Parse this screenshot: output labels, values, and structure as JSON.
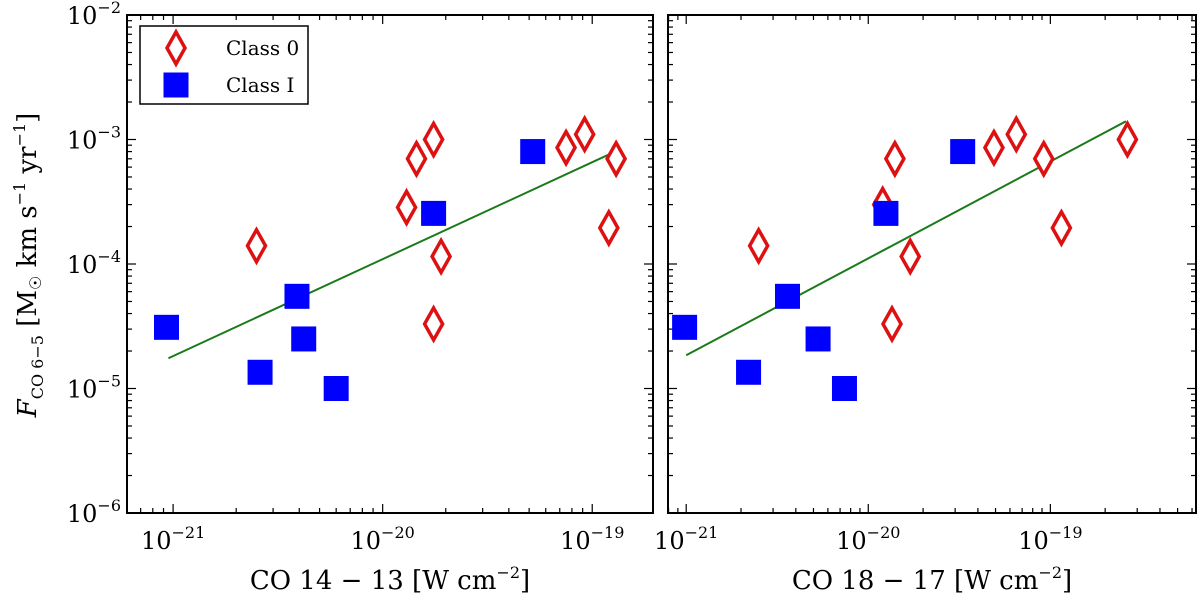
{
  "chart_data": {
    "type": "scatter",
    "y_axis": {
      "label": "F_CO 6−5 [M☉ km s⁻¹ yr⁻¹]",
      "label_main": "F",
      "label_sub": "CO 6−5",
      "label_units_prefix": " [M",
      "label_units_sun": "☉",
      "label_units_rest": " km s",
      "label_units_yr": " yr",
      "label_exp": "−1",
      "label_end": "]",
      "scale": "log",
      "range_exp": [
        -6,
        -2
      ],
      "ticks": [
        {
          "base": "10",
          "exp": "−6",
          "value_exp": -6
        },
        {
          "base": "10",
          "exp": "−5",
          "value_exp": -5
        },
        {
          "base": "10",
          "exp": "−4",
          "value_exp": -4
        },
        {
          "base": "10",
          "exp": "−3",
          "value_exp": -3
        },
        {
          "base": "10",
          "exp": "−2",
          "value_exp": -2
        }
      ]
    },
    "legend": {
      "position": "top-left",
      "entries": [
        {
          "label": "Class 0",
          "marker": "diamond",
          "color": "#dd1111"
        },
        {
          "label": "Class I",
          "marker": "square",
          "color": "#0000ff"
        }
      ]
    },
    "colors": {
      "class0": "#dd1111",
      "class1": "#0000ff",
      "fit": "#1a7a1a"
    },
    "panels": [
      {
        "name": "CO 14-13",
        "xlabel": "CO 14 − 13 [W cm",
        "xlabel_exp": "−2",
        "xlabel_end": "]",
        "xlim_exp": [
          -21.22,
          -18.71
        ],
        "xticks": [
          {
            "base": "10",
            "exp": "−21",
            "value_exp": -21
          },
          {
            "base": "10",
            "exp": "−20",
            "value_exp": -20
          },
          {
            "base": "10",
            "exp": "−19",
            "value_exp": -19
          }
        ],
        "class0": [
          [
            2.5e-21,
            0.00014
          ],
          [
            1.3e-20,
            0.000285
          ],
          [
            1.45e-20,
            0.0007
          ],
          [
            1.75e-20,
            0.001
          ],
          [
            1.75e-20,
            3.3e-05
          ],
          [
            1.9e-20,
            0.000115
          ],
          [
            7.5e-20,
            0.00086
          ],
          [
            9.2e-20,
            0.0011
          ],
          [
            1.2e-19,
            0.000195
          ],
          [
            1.3e-19,
            0.0007
          ]
        ],
        "class1": [
          [
            9.3e-22,
            3.1e-05
          ],
          [
            2.6e-21,
            1.35e-05
          ],
          [
            3.9e-21,
            5.5e-05
          ],
          [
            4.2e-21,
            2.5e-05
          ],
          [
            6e-21,
            1e-05
          ],
          [
            1.75e-20,
            0.000255
          ],
          [
            5.2e-20,
            0.0008
          ]
        ],
        "fit": [
          [
            9.5e-22,
            1.75e-05
          ],
          [
            1.35e-19,
            0.00083
          ]
        ]
      },
      {
        "name": "CO 18-17",
        "xlabel": "CO 18 − 17 [W cm",
        "xlabel_exp": "−2",
        "xlabel_end": "]",
        "xlim_exp": [
          -21.1,
          -18.2
        ],
        "xticks": [
          {
            "base": "10",
            "exp": "−21",
            "value_exp": -21
          },
          {
            "base": "10",
            "exp": "−20",
            "value_exp": -20
          },
          {
            "base": "10",
            "exp": "−19",
            "value_exp": -19
          }
        ],
        "class0": [
          [
            2.5e-21,
            0.00014
          ],
          [
            1.2e-20,
            0.0003
          ],
          [
            1.4e-20,
            0.0007
          ],
          [
            1.35e-20,
            3.3e-05
          ],
          [
            1.7e-20,
            0.000115
          ],
          [
            4.9e-20,
            0.00086
          ],
          [
            6.5e-20,
            0.0011
          ],
          [
            9.2e-20,
            0.0007
          ],
          [
            1.15e-19,
            0.000195
          ],
          [
            2.65e-19,
            0.001
          ]
        ],
        "class1": [
          [
            9.8e-22,
            3.1e-05
          ],
          [
            2.2e-21,
            1.35e-05
          ],
          [
            3.6e-21,
            5.5e-05
          ],
          [
            5.3e-21,
            2.5e-05
          ],
          [
            7.4e-21,
            1e-05
          ],
          [
            1.25e-20,
            0.000255
          ],
          [
            3.3e-20,
            0.0008
          ]
        ],
        "fit": [
          [
            1e-21,
            1.85e-05
          ],
          [
            2.6e-19,
            0.0014
          ]
        ]
      }
    ]
  }
}
